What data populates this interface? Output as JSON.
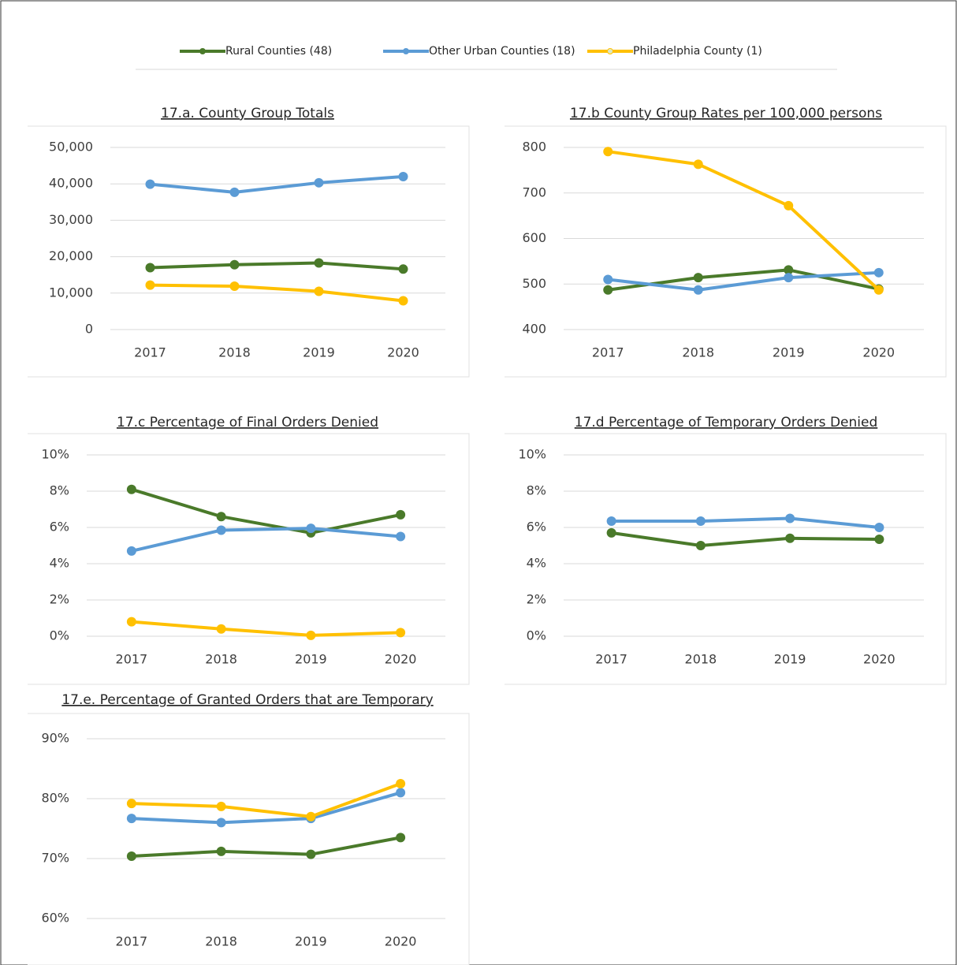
{
  "chart_data": [
    {
      "type": "line",
      "title": "17.a. County Group Totals",
      "categories": [
        "2017",
        "2018",
        "2019",
        "2020"
      ],
      "series": [
        {
          "name": "Rural Counties (48)",
          "color": "#4a7a2a",
          "values": [
            17000,
            17800,
            18300,
            16600
          ]
        },
        {
          "name": "Other Urban Counties (18)",
          "color": "#5b9bd5",
          "values": [
            39900,
            37700,
            40300,
            42000
          ]
        },
        {
          "name": "Philadelphia County (1)",
          "color": "#ffc000",
          "values": [
            12200,
            11900,
            10500,
            7900
          ]
        }
      ],
      "ylim": [
        0,
        50000
      ],
      "yticks": [
        0,
        {
          "value": 10000,
          "label": "10,000"
        },
        {
          "value": 20000,
          "label": "20,000"
        },
        {
          "value": 30000,
          "label": "30,000"
        },
        {
          "value": 40000,
          "label": "40,000"
        },
        {
          "value": 50000,
          "label": "50,000"
        }
      ],
      "grid": true
    },
    {
      "type": "line",
      "title": "17.b County Group Rates per 100,000 persons",
      "categories": [
        "2017",
        "2018",
        "2019",
        "2020"
      ],
      "series": [
        {
          "color": "#4a7a2a",
          "values": [
            487,
            514,
            531,
            489
          ]
        },
        {
          "color": "#5b9bd5",
          "values": [
            510,
            487,
            514,
            525
          ]
        },
        {
          "color": "#ffc000",
          "values": [
            791,
            763,
            672,
            487
          ]
        }
      ],
      "ylim": [
        400,
        800
      ],
      "yticks": [
        400,
        500,
        600,
        700,
        800
      ],
      "grid": true
    },
    {
      "type": "line",
      "title": "17.c Percentage of Final Orders Denied",
      "categories": [
        "2017",
        "2018",
        "2019",
        "2020"
      ],
      "series": [
        {
          "color": "#4a7a2a",
          "values": [
            8.1,
            6.6,
            5.7,
            6.7
          ]
        },
        {
          "color": "#5b9bd5",
          "values": [
            4.7,
            5.85,
            5.95,
            5.5
          ]
        },
        {
          "color": "#ffc000",
          "values": [
            0.8,
            0.4,
            0.05,
            0.2
          ]
        }
      ],
      "ylim": [
        0,
        10
      ],
      "yticks": [
        {
          "value": 0,
          "label": "0%"
        },
        {
          "value": 2,
          "label": "2%"
        },
        {
          "value": 4,
          "label": "4%"
        },
        {
          "value": 6,
          "label": "6%"
        },
        {
          "value": 8,
          "label": "8%"
        },
        {
          "value": 10,
          "label": "10%"
        }
      ],
      "grid": true
    },
    {
      "type": "line",
      "title": "17.d Percentage of Temporary Orders Denied",
      "categories": [
        "2017",
        "2018",
        "2019",
        "2020"
      ],
      "series": [
        {
          "color": "#4a7a2a",
          "values": [
            5.7,
            5.0,
            5.4,
            5.35
          ]
        },
        {
          "color": "#5b9bd5",
          "values": [
            6.35,
            6.35,
            6.5,
            6.0
          ]
        }
      ],
      "ylim": [
        0,
        10
      ],
      "yticks": [
        {
          "value": 0,
          "label": "0%"
        },
        {
          "value": 2,
          "label": "2%"
        },
        {
          "value": 4,
          "label": "4%"
        },
        {
          "value": 6,
          "label": "6%"
        },
        {
          "value": 8,
          "label": "8%"
        },
        {
          "value": 10,
          "label": "10%"
        }
      ],
      "grid": true
    },
    {
      "type": "line",
      "title": "17.e. Percentage of Granted Orders that are Temporary",
      "categories": [
        "2017",
        "2018",
        "2019",
        "2020"
      ],
      "series": [
        {
          "color": "#4a7a2a",
          "values": [
            70.4,
            71.2,
            70.7,
            73.5
          ]
        },
        {
          "color": "#5b9bd5",
          "values": [
            76.7,
            76.0,
            76.7,
            81.0
          ]
        },
        {
          "color": "#ffc000",
          "values": [
            79.2,
            78.7,
            77.0,
            82.5
          ]
        }
      ],
      "ylim": [
        60,
        90
      ],
      "yticks": [
        {
          "value": 60,
          "label": "60%"
        },
        {
          "value": 70,
          "label": "70%"
        },
        {
          "value": 80,
          "label": "80%"
        },
        {
          "value": 90,
          "label": "90%"
        }
      ],
      "grid": true
    }
  ]
}
